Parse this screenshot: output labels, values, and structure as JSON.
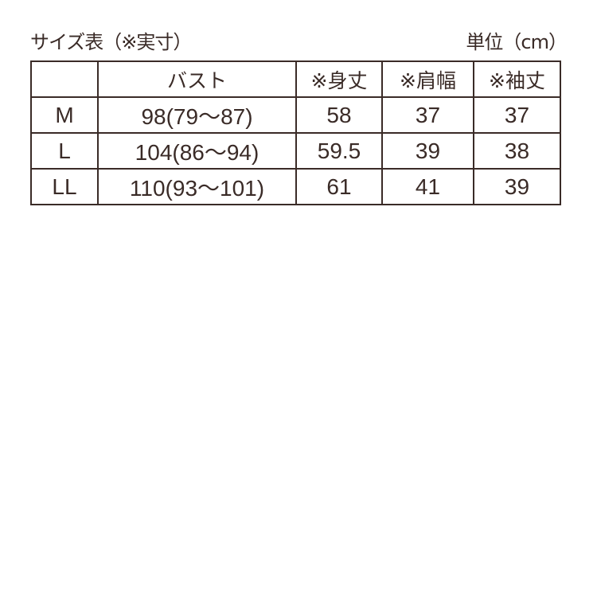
{
  "title": "サイズ表（※実寸）",
  "unit": "単位（cm）",
  "colors": {
    "text": "#3a2b27",
    "background": "#ffffff"
  },
  "table": {
    "headers": [
      "",
      "バスト",
      "※身丈",
      "※肩幅",
      "※袖丈"
    ],
    "rows": [
      [
        "M",
        "98(79～87)",
        "58",
        "37",
        "37"
      ],
      [
        "L",
        "104(86～94)",
        "59.5",
        "39",
        "38"
      ],
      [
        "LL",
        "110(93～101)",
        "61",
        "41",
        "39"
      ]
    ]
  }
}
